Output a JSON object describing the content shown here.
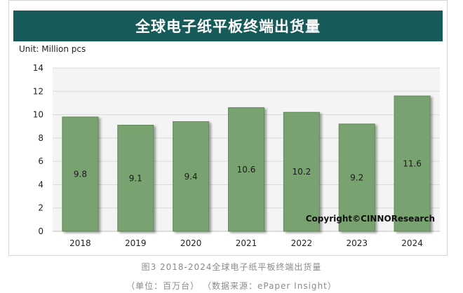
{
  "header": {
    "title": "全球电子纸平板终端出货量"
  },
  "unit_text": "Unit: Million pcs",
  "copyright": "Copyright©CINNOResearch",
  "captions": {
    "figure": "图3 2018-2024全球电子纸平板终端出货量",
    "source": "（单位：百万台） （数据来源：ePaper Insight）"
  },
  "colors": {
    "bar_fill": "#78a26f",
    "bar_stroke": "#5f8a57",
    "title_bg": "#165a5a",
    "plot_bg": "#f4f4f4",
    "grid": "#d9d9d9"
  },
  "chart_data": {
    "type": "bar",
    "title": "全球电子纸平板终端出货量",
    "xlabel": "",
    "ylabel": "Unit: Million pcs",
    "categories": [
      "2018",
      "2019",
      "2020",
      "2021",
      "2022",
      "2023",
      "2024"
    ],
    "values": [
      9.8,
      9.1,
      9.4,
      10.6,
      10.2,
      9.2,
      11.6
    ],
    "data_labels": [
      "9.8",
      "9.1",
      "9.4",
      "10.6",
      "10.2",
      "9.2",
      "11.6"
    ],
    "ylim": [
      0,
      14
    ],
    "yticks": [
      "0",
      "2",
      "4",
      "6",
      "8",
      "10",
      "12",
      "14"
    ],
    "ytick_values": [
      0,
      2,
      4,
      6,
      8,
      10,
      12,
      14
    ],
    "grid": true,
    "legend": "none"
  }
}
